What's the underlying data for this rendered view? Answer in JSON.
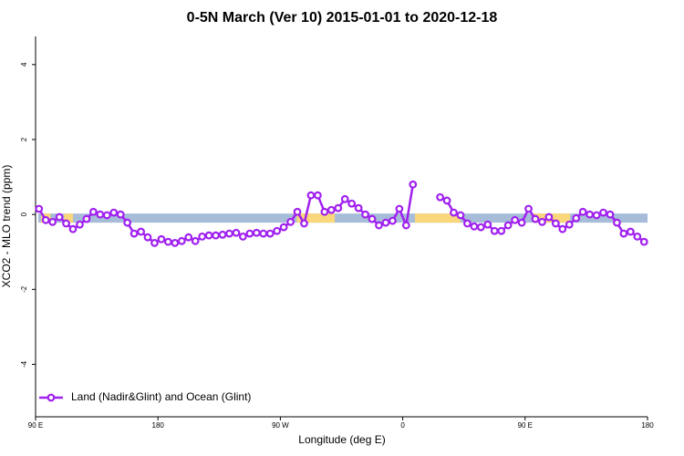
{
  "chart_data": {
    "type": "line",
    "title": "0-5N March (Ver 10)   2015-01-01 to 2020-12-18",
    "x_label": "Longitude (deg E)",
    "y_label": "XCO2 - MLO trend (ppm)",
    "xlim": [
      90,
      540
    ],
    "ylim": [
      -5.4,
      4.75
    ],
    "xticks": [
      {
        "value": 90,
        "label": "90 E"
      },
      {
        "value": 180,
        "label": "180"
      },
      {
        "value": 270,
        "label": "90 W"
      },
      {
        "value": 360,
        "label": "0"
      },
      {
        "value": 450,
        "label": "90 E"
      },
      {
        "value": 540,
        "label": "180"
      }
    ],
    "yticks": [
      -4,
      -2,
      0,
      2,
      4
    ],
    "legend_position": "bottom-left",
    "x": [
      92.5,
      97.5,
      102.5,
      107.5,
      112.5,
      117.5,
      122.5,
      127.5,
      132.5,
      137.5,
      142.5,
      147.5,
      152.5,
      157.5,
      162.5,
      167.5,
      172.5,
      177.5,
      182.5,
      187.5,
      192.5,
      197.5,
      202.5,
      207.5,
      212.5,
      217.5,
      222.5,
      227.5,
      232.5,
      237.5,
      242.5,
      247.5,
      252.5,
      257.5,
      262.5,
      267.5,
      272.5,
      277.5,
      282.5,
      287.5,
      292.5,
      297.5,
      302.5,
      307.5,
      312.5,
      317.5,
      322.5,
      327.5,
      332.5,
      337.5,
      342.5,
      347.5,
      352.5,
      357.5,
      362.5,
      367.5,
      372.5,
      377.5,
      382.5,
      387.5,
      392.5,
      397.5,
      402.5,
      407.5,
      412.5,
      417.5,
      422.5,
      427.5,
      432.5,
      437.5,
      442.5,
      447.5,
      452.5,
      457.5,
      462.5,
      467.5,
      472.5,
      477.5,
      482.5,
      487.5,
      492.5,
      497.5,
      502.5,
      507.5,
      512.5,
      517.5,
      522.5,
      527.5,
      532.5,
      537.5
    ],
    "series": [
      {
        "name": "Land (Nadir&Glint) and Ocean (Glint)",
        "color": "#a020f0",
        "values": [
          0.15,
          -0.15,
          -0.2,
          -0.07,
          -0.24,
          -0.39,
          -0.27,
          -0.12,
          0.07,
          0,
          -0.02,
          0.05,
          0,
          -0.22,
          -0.51,
          -0.46,
          -0.61,
          -0.76,
          -0.66,
          -0.73,
          -0.76,
          -0.71,
          -0.61,
          -0.71,
          -0.59,
          -0.56,
          -0.56,
          -0.54,
          -0.51,
          -0.49,
          -0.59,
          -0.51,
          -0.49,
          -0.51,
          -0.51,
          -0.44,
          -0.34,
          -0.2,
          0.07,
          -0.24,
          0.51,
          0.51,
          0.07,
          0.12,
          0.17,
          0.41,
          0.29,
          0.17,
          0,
          -0.12,
          -0.29,
          -0.22,
          -0.17,
          0.15,
          -0.29,
          0.8,
          null,
          null,
          null,
          0.46,
          0.37,
          0.05,
          -0.02,
          -0.24,
          -0.32,
          -0.34,
          -0.27,
          -0.44,
          -0.44,
          -0.29,
          -0.15,
          -0.22,
          0.15,
          -0.12,
          -0.2,
          -0.07,
          -0.24,
          -0.39,
          -0.27,
          -0.1,
          0.07,
          0,
          -0.02,
          0.05,
          0,
          -0.22,
          -0.51,
          -0.46,
          -0.59,
          -0.73
        ]
      }
    ],
    "surface_band": {
      "ocean_color": "#a7bcd8",
      "land_color": "#f9d77a",
      "land_ranges": [
        [
          94,
          101
        ],
        [
          111,
          117.5
        ],
        [
          282,
          310
        ],
        [
          369,
          402.5
        ],
        [
          456,
          483
        ]
      ]
    }
  }
}
